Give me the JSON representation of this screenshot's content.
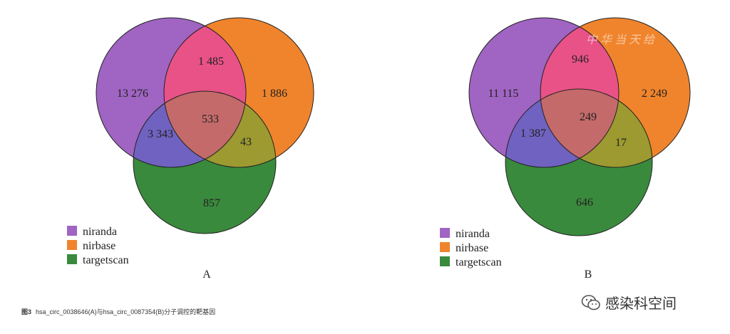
{
  "legend": [
    "niranda",
    "nirbase",
    "targetscan"
  ],
  "colors": {
    "niranda": "#a064c3",
    "nirbase": "#f0842c",
    "targetscan": "#3a8a3d",
    "ab": "#e85287",
    "ac": "#7062c0",
    "bc": "#9c9a30",
    "abc": "#c46a6a"
  },
  "panels": [
    {
      "label": "A",
      "regions": {
        "a": "13 276",
        "ab": "1 485",
        "b": "1 886",
        "ac": "3 343",
        "abc": "533",
        "bc": "43",
        "c": "857"
      }
    },
    {
      "label": "B",
      "regions": {
        "a": "11 115",
        "ab": "946",
        "b": "2 249",
        "ac": "1 387",
        "abc": "249",
        "bc": "17",
        "c": "646"
      }
    }
  ],
  "caption": {
    "prefix": "图3",
    "text": "hsa_circ_0038646(A)与hsa_circ_0087354(B)分子调控的靶基因"
  },
  "watermark_text": "感染科空间",
  "stamp_text": "中华当天给"
}
